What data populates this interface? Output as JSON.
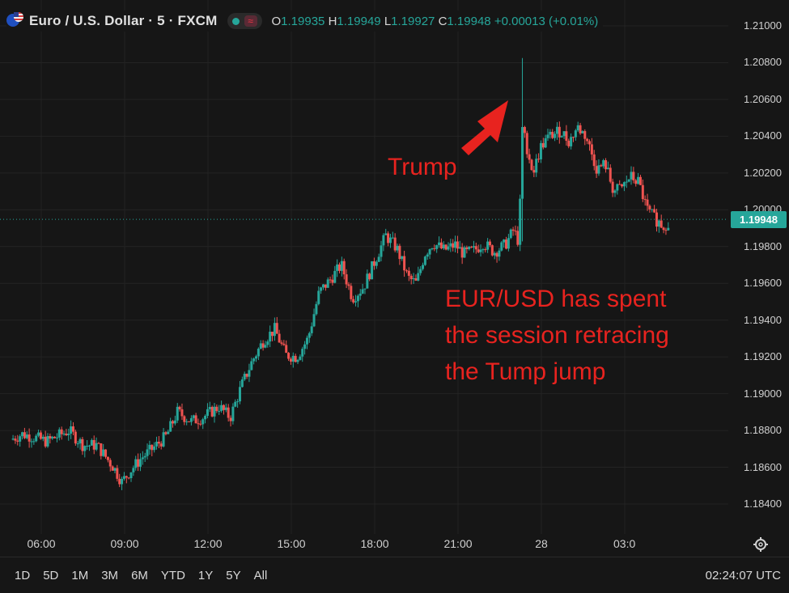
{
  "header": {
    "symbol_label": "Euro / U.S. Dollar · 5 · FXCM",
    "flag_icon": "eur-usd-flag-icon",
    "market_status_icon": "market-open-dot-icon",
    "indicator_icon": "wave-icon",
    "ohlc": {
      "o_key": "O",
      "o_val": "1.19935",
      "h_key": "H",
      "h_val": "1.19949",
      "l_key": "L",
      "l_val": "1.19927",
      "c_key": "C",
      "c_val": "1.19948",
      "change": "+0.00013 (+0.01%)"
    }
  },
  "chart_data": {
    "type": "candlestick",
    "colors": {
      "up": "#26a69a",
      "down": "#ef5350",
      "annotation": "#e8231f",
      "last_price": "#26a69a"
    },
    "y_axis": {
      "ticks": [
        "1.21000",
        "1.20800",
        "1.20600",
        "1.20400",
        "1.20200",
        "1.20000",
        "1.19800",
        "1.19600",
        "1.19400",
        "1.19200",
        "1.19000",
        "1.18800",
        "1.18600",
        "1.18400"
      ],
      "range": [
        1.183,
        1.2115
      ]
    },
    "x_axis": {
      "ticks": [
        "06:00",
        "09:00",
        "12:00",
        "15:00",
        "18:00",
        "21:00",
        "28",
        "03:0"
      ]
    },
    "last_price": "1.19948",
    "grid": true,
    "path_anchors": [
      [
        4.9,
        1.1875
      ],
      [
        5.3,
        1.1878
      ],
      [
        5.6,
        1.1877
      ],
      [
        6.2,
        1.1874
      ],
      [
        6.6,
        1.1877
      ],
      [
        7.0,
        1.188
      ],
      [
        7.5,
        1.1872
      ],
      [
        8.0,
        1.1872
      ],
      [
        8.3,
        1.1866
      ],
      [
        8.6,
        1.186
      ],
      [
        8.9,
        1.1852
      ],
      [
        9.2,
        1.1858
      ],
      [
        9.6,
        1.1865
      ],
      [
        10.0,
        1.187
      ],
      [
        10.5,
        1.1877
      ],
      [
        10.9,
        1.189
      ],
      [
        11.4,
        1.1885
      ],
      [
        11.8,
        1.1887
      ],
      [
        12.4,
        1.1893
      ],
      [
        12.8,
        1.1887
      ],
      [
        13.2,
        1.1904
      ],
      [
        13.6,
        1.1918
      ],
      [
        14.0,
        1.1929
      ],
      [
        14.4,
        1.1935
      ],
      [
        14.8,
        1.1921
      ],
      [
        15.2,
        1.192
      ],
      [
        15.6,
        1.193
      ],
      [
        16.0,
        1.1955
      ],
      [
        16.4,
        1.1962
      ],
      [
        16.8,
        1.197
      ],
      [
        17.2,
        1.1952
      ],
      [
        17.6,
        1.1958
      ],
      [
        18.0,
        1.1972
      ],
      [
        18.4,
        1.1986
      ],
      [
        18.8,
        1.1979
      ],
      [
        19.2,
        1.1963
      ],
      [
        19.5,
        1.196
      ],
      [
        19.8,
        1.1976
      ],
      [
        20.1,
        1.1982
      ],
      [
        20.5,
        1.1978
      ],
      [
        20.9,
        1.1981
      ],
      [
        21.2,
        1.1976
      ],
      [
        21.6,
        1.1978
      ],
      [
        21.9,
        1.1982
      ],
      [
        22.3,
        1.1977
      ],
      [
        22.7,
        1.1981
      ],
      [
        23.0,
        1.1989
      ],
      [
        23.2,
        1.1982
      ],
      [
        23.3,
        1.2045
      ],
      [
        23.7,
        1.202
      ],
      [
        24.0,
        1.2035
      ],
      [
        24.3,
        1.204
      ],
      [
        24.7,
        1.2043
      ],
      [
        25.0,
        1.2037
      ],
      [
        25.3,
        1.2045
      ],
      [
        25.6,
        1.204
      ],
      [
        26.0,
        1.2022
      ],
      [
        26.3,
        1.2025
      ],
      [
        26.6,
        1.201
      ],
      [
        26.9,
        1.2012
      ],
      [
        27.2,
        1.2018
      ],
      [
        27.5,
        1.2015
      ],
      [
        27.8,
        1.2
      ],
      [
        28.1,
        1.1995
      ],
      [
        28.4,
        1.1991
      ],
      [
        28.6,
        1.1994
      ]
    ],
    "spike": {
      "time": 23.28,
      "high": 1.20825,
      "low": 1.19828
    }
  },
  "annotations": {
    "trump": "Trump",
    "message": [
      "EUR/USD has spent",
      "the session retracing",
      "the Tump jump"
    ]
  },
  "toolbar": {
    "ranges": [
      "1D",
      "5D",
      "1M",
      "3M",
      "6M",
      "YTD",
      "1Y",
      "5Y",
      "All"
    ],
    "clock": "02:24:07 UTC",
    "settings_icon": "gear-icon"
  }
}
